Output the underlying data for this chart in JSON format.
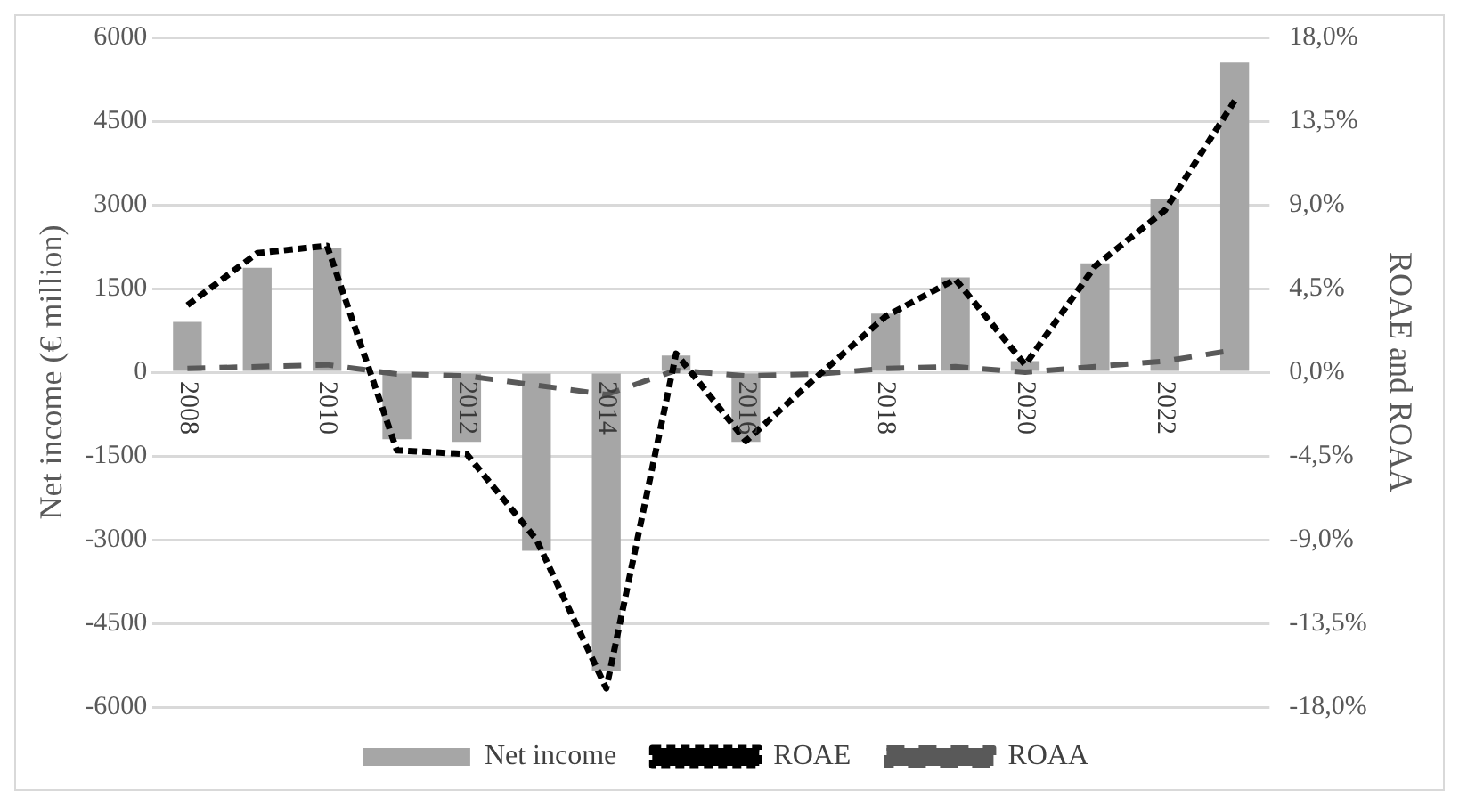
{
  "chart_data": {
    "type": "bar",
    "categories": [
      "2008",
      null,
      "2010",
      null,
      "2012",
      null,
      "2014",
      null,
      "2016",
      null,
      "2018",
      null,
      "2020",
      null,
      "2022",
      null
    ],
    "ylabel": "Net income (€ million)",
    "y2label": "ROAE and ROAA",
    "series": [
      {
        "name": "Net income",
        "color": "#a6a6a6",
        "values": [
          900,
          1870,
          2230,
          -1200,
          -1250,
          -3200,
          -5350,
          300,
          -1250,
          0,
          1050,
          1700,
          200,
          1950,
          3100,
          5550
        ]
      },
      {
        "name": "ROAE",
        "type": "line",
        "axis": "y2",
        "color": "#000000",
        "line_style": "dotted",
        "values": [
          3.6,
          6.4,
          6.8,
          -4.2,
          -4.4,
          -9.0,
          -17.0,
          1.0,
          -3.7,
          -0.3,
          3.0,
          5.0,
          0.4,
          5.7,
          8.7,
          14.6
        ]
      },
      {
        "name": "ROAA",
        "type": "line",
        "axis": "y2",
        "color": "#595959",
        "line_style": "dashed",
        "values": [
          0.2,
          0.3,
          0.4,
          -0.1,
          -0.2,
          -0.7,
          -1.2,
          0.1,
          -0.2,
          -0.1,
          0.2,
          0.3,
          0.0,
          0.3,
          0.6,
          1.2
        ]
      }
    ],
    "ylim": [
      -6000,
      6000
    ],
    "yticks": [
      -6000,
      -4500,
      -3000,
      -1500,
      0,
      1500,
      3000,
      4500,
      6000
    ],
    "y2lim": [
      -18,
      18
    ],
    "y2ticks": [
      {
        "value": -18,
        "label": "-18,0%"
      },
      {
        "value": -13.5,
        "label": "-13,5%"
      },
      {
        "value": -9,
        "label": "-9,0%"
      },
      {
        "value": -4.5,
        "label": "-4,5%"
      },
      {
        "value": 0,
        "label": "0,0%"
      },
      {
        "value": 4.5,
        "label": "4,5%"
      },
      {
        "value": 9,
        "label": "9,0%"
      },
      {
        "value": 13.5,
        "label": "13,5%"
      },
      {
        "value": 18,
        "label": "18,0%"
      }
    ],
    "grid": "y",
    "legend": "bottom",
    "marker": "none"
  }
}
